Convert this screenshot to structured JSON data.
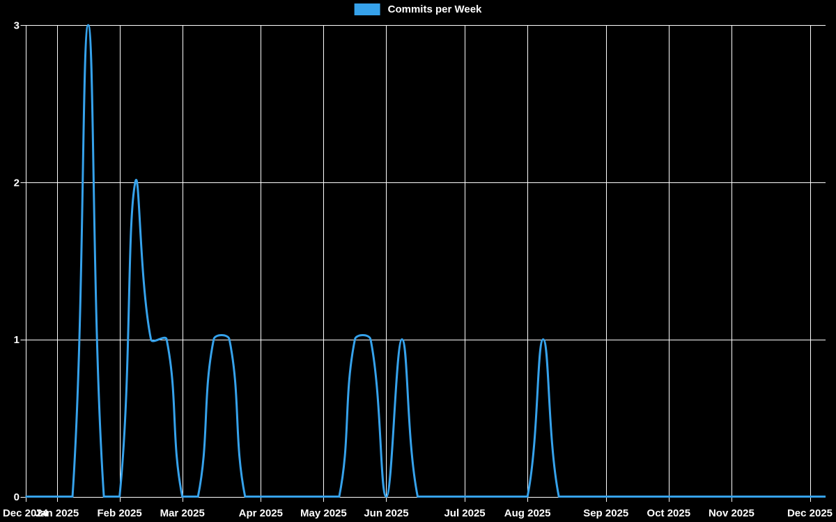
{
  "colors": {
    "background": "#000000",
    "line": "#36a2eb",
    "grid": "#ffffff",
    "text": "#ffffff"
  },
  "chart_data": {
    "type": "line",
    "title": "",
    "legend_position": "top",
    "interpolation": "cardinal",
    "tension": 0.4,
    "line_width": 3,
    "grid": true,
    "x_unit": "week",
    "ylabel": "",
    "xlabel": "",
    "ylim": [
      0,
      3
    ],
    "y_ticks": [
      0,
      1,
      2,
      3
    ],
    "x_ticks": [
      {
        "week": 0,
        "label": "Dec 2024"
      },
      {
        "week": 2,
        "label": "Jan 2025"
      },
      {
        "week": 6,
        "label": "Feb 2025"
      },
      {
        "week": 10,
        "label": "Mar 2025"
      },
      {
        "week": 15,
        "label": "Apr 2025"
      },
      {
        "week": 19,
        "label": "May 2025"
      },
      {
        "week": 23,
        "label": "Jun 2025"
      },
      {
        "week": 28,
        "label": "Jul 2025"
      },
      {
        "week": 32,
        "label": "Aug 2025"
      },
      {
        "week": 37,
        "label": "Sep 2025"
      },
      {
        "week": 41,
        "label": "Oct 2025"
      },
      {
        "week": 45,
        "label": "Nov 2025"
      },
      {
        "week": 50,
        "label": "Dec 2025"
      }
    ],
    "series": [
      {
        "name": "Commits per Week",
        "color": "#36a2eb",
        "values": [
          0,
          0,
          0,
          0,
          3,
          0,
          0,
          2,
          1,
          1,
          0,
          0,
          1,
          1,
          0,
          0,
          0,
          0,
          0,
          0,
          0,
          1,
          1,
          0,
          1,
          0,
          0,
          0,
          0,
          0,
          0,
          0,
          0,
          1,
          0,
          0,
          0,
          0,
          0,
          0,
          0,
          0,
          0,
          0,
          0,
          0,
          0,
          0,
          0,
          0,
          0,
          0
        ]
      }
    ]
  }
}
